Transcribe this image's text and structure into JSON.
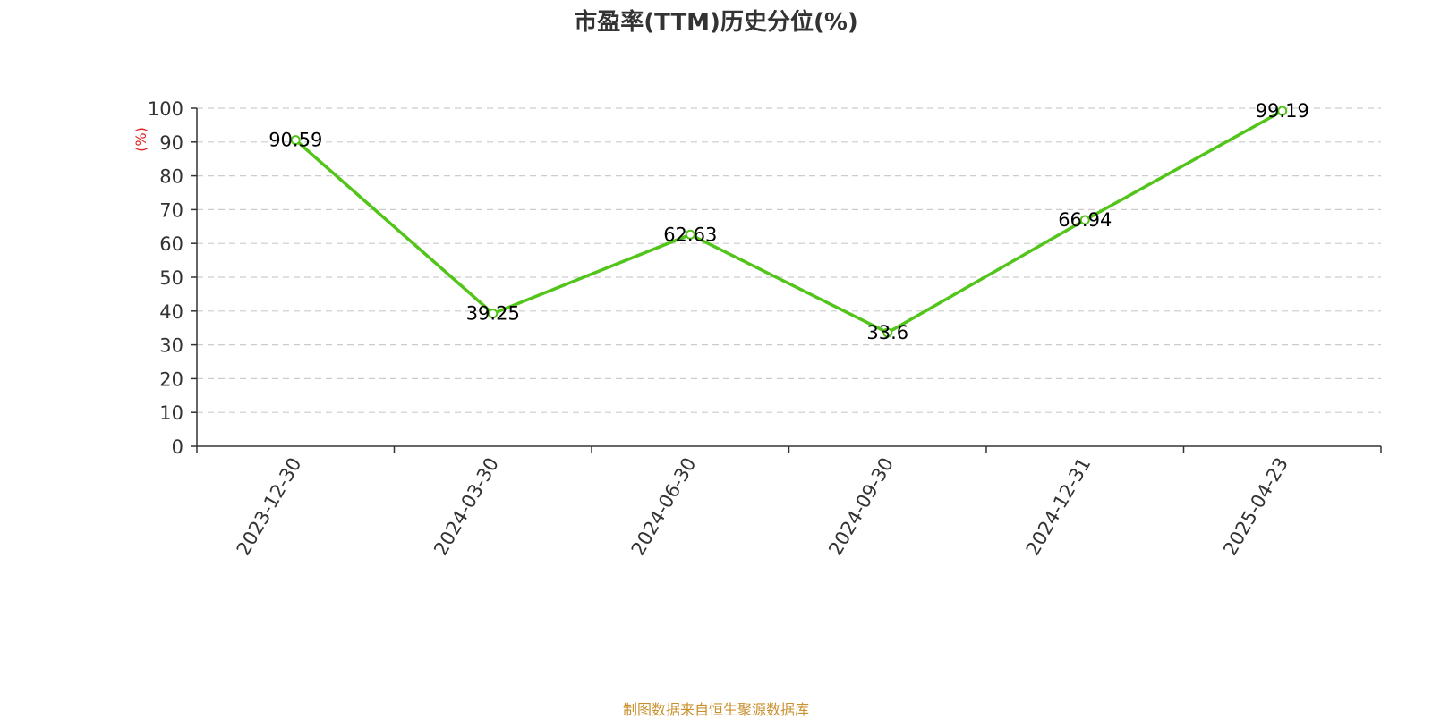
{
  "chart_data": {
    "type": "line",
    "title": "市盈率(TTM)历史分位(%)",
    "ylabel": "(%)",
    "xlabel": "",
    "categories": [
      "2023-12-30",
      "2024-03-30",
      "2024-06-30",
      "2024-09-30",
      "2024-12-31",
      "2025-04-23"
    ],
    "values": [
      90.59,
      39.25,
      62.63,
      33.6,
      66.94,
      99.19
    ],
    "data_labels": [
      "90.59",
      "39.25",
      "62.63",
      "33.6",
      "66.94",
      "99.19"
    ],
    "ylim": [
      0,
      100
    ],
    "yticks": [
      "0",
      "10",
      "20",
      "30",
      "40",
      "50",
      "60",
      "70",
      "80",
      "90",
      "100"
    ],
    "grid": true,
    "legend": "none",
    "colors": {
      "line": "#52c41a",
      "ylabel": "#e02020",
      "grid": "#cccccc"
    }
  },
  "footer": {
    "source": "制图数据来自恒生聚源数据库"
  }
}
